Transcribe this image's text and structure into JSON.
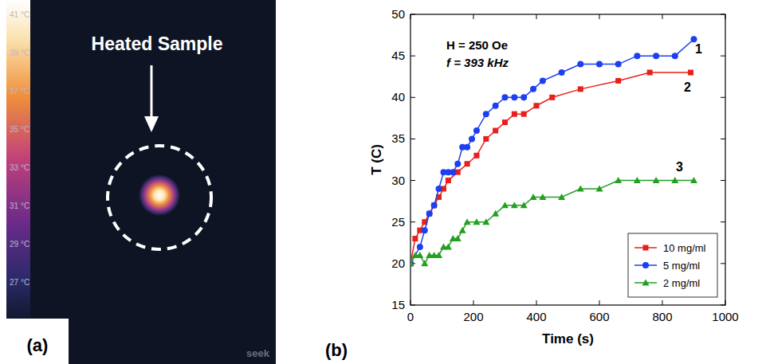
{
  "thermal_image": {
    "label": "Heated Sample",
    "panel_label": "(a)",
    "scale_labels": [
      "41 °C",
      "39 °C",
      "37 °C",
      "35 °C",
      "33 °C",
      "31 °C",
      "29 °C",
      "27 °C"
    ],
    "brand": "seek"
  },
  "chart_data": {
    "type": "line",
    "panel_label": "(b)",
    "x_label": "Time (s)",
    "y_label": "T (C)",
    "annotations": [
      "H = 250 Oe",
      "f = 393 kHz"
    ],
    "xlim": [
      0,
      1000
    ],
    "xticks": [
      0,
      200,
      400,
      600,
      800,
      1000
    ],
    "ylim": [
      15,
      50
    ],
    "yticks": [
      15,
      20,
      25,
      30,
      35,
      40,
      45,
      50
    ],
    "legend": "lower right",
    "grid": false,
    "series": [
      {
        "name": "10 mg/ml",
        "label": "2",
        "color": "#e8201c",
        "marker": "square",
        "x": [
          0,
          15,
          30,
          45,
          60,
          75,
          90,
          105,
          120,
          150,
          180,
          210,
          240,
          270,
          300,
          330,
          360,
          400,
          450,
          540,
          660,
          760,
          890
        ],
        "values": [
          20,
          23,
          24,
          25,
          26,
          27,
          28,
          29,
          30,
          31,
          32,
          33,
          35,
          36,
          37,
          38,
          38,
          39,
          40,
          41,
          42,
          43,
          43
        ]
      },
      {
        "name": "5 mg/ml",
        "label": "1",
        "color": "#1c3ff0",
        "marker": "circle",
        "x": [
          0,
          30,
          45,
          60,
          75,
          90,
          105,
          120,
          135,
          150,
          165,
          180,
          195,
          210,
          240,
          270,
          300,
          330,
          360,
          390,
          420,
          480,
          540,
          600,
          660,
          720,
          780,
          840,
          900
        ],
        "values": [
          20,
          22,
          24,
          26,
          27,
          29,
          31,
          31,
          31,
          32,
          34,
          34,
          35,
          36,
          38,
          39,
          40,
          40,
          40,
          41,
          42,
          43,
          44,
          44,
          44,
          45,
          45,
          45,
          47
        ]
      },
      {
        "name": "2 mg/ml",
        "label": "3",
        "color": "#22a022",
        "marker": "triangle",
        "x": [
          0,
          15,
          30,
          45,
          60,
          75,
          90,
          105,
          120,
          135,
          150,
          165,
          180,
          210,
          240,
          270,
          300,
          330,
          360,
          390,
          420,
          480,
          540,
          600,
          660,
          720,
          780,
          840,
          900
        ],
        "values": [
          20,
          21,
          21,
          20,
          21,
          21,
          21,
          22,
          22,
          23,
          23,
          24,
          25,
          25,
          25,
          26,
          27,
          27,
          27,
          28,
          28,
          28,
          29,
          29,
          30,
          30,
          30,
          30,
          30
        ]
      }
    ]
  }
}
